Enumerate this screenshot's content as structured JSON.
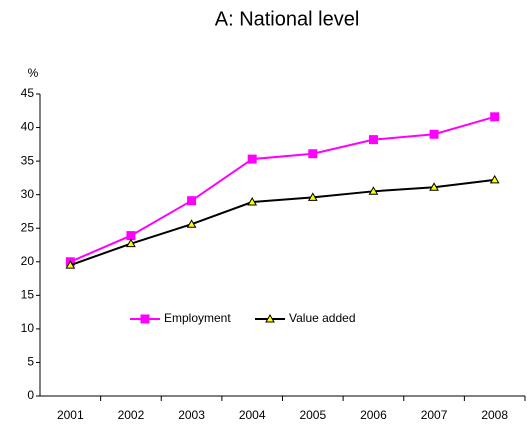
{
  "chart_data": {
    "type": "line",
    "title": "A: National level",
    "y_label": "%",
    "categories": [
      "2001",
      "2002",
      "2003",
      "2004",
      "2005",
      "2006",
      "2007",
      "2008"
    ],
    "series": [
      {
        "name": "Employment",
        "color": "#ff00ff",
        "marker": "square",
        "marker_fill": "#ff00ff",
        "values": [
          20.0,
          23.9,
          29.1,
          35.3,
          36.1,
          38.2,
          39.0,
          41.6
        ]
      },
      {
        "name": "Value added",
        "color": "#000000",
        "marker": "triangle",
        "marker_fill": "#ffff00",
        "values": [
          19.5,
          22.7,
          25.6,
          28.9,
          29.6,
          30.5,
          31.1,
          32.2
        ]
      }
    ],
    "ylim": [
      0,
      45
    ],
    "yticks": [
      0,
      5,
      10,
      15,
      20,
      25,
      30,
      35,
      40,
      45
    ],
    "grid": false
  }
}
